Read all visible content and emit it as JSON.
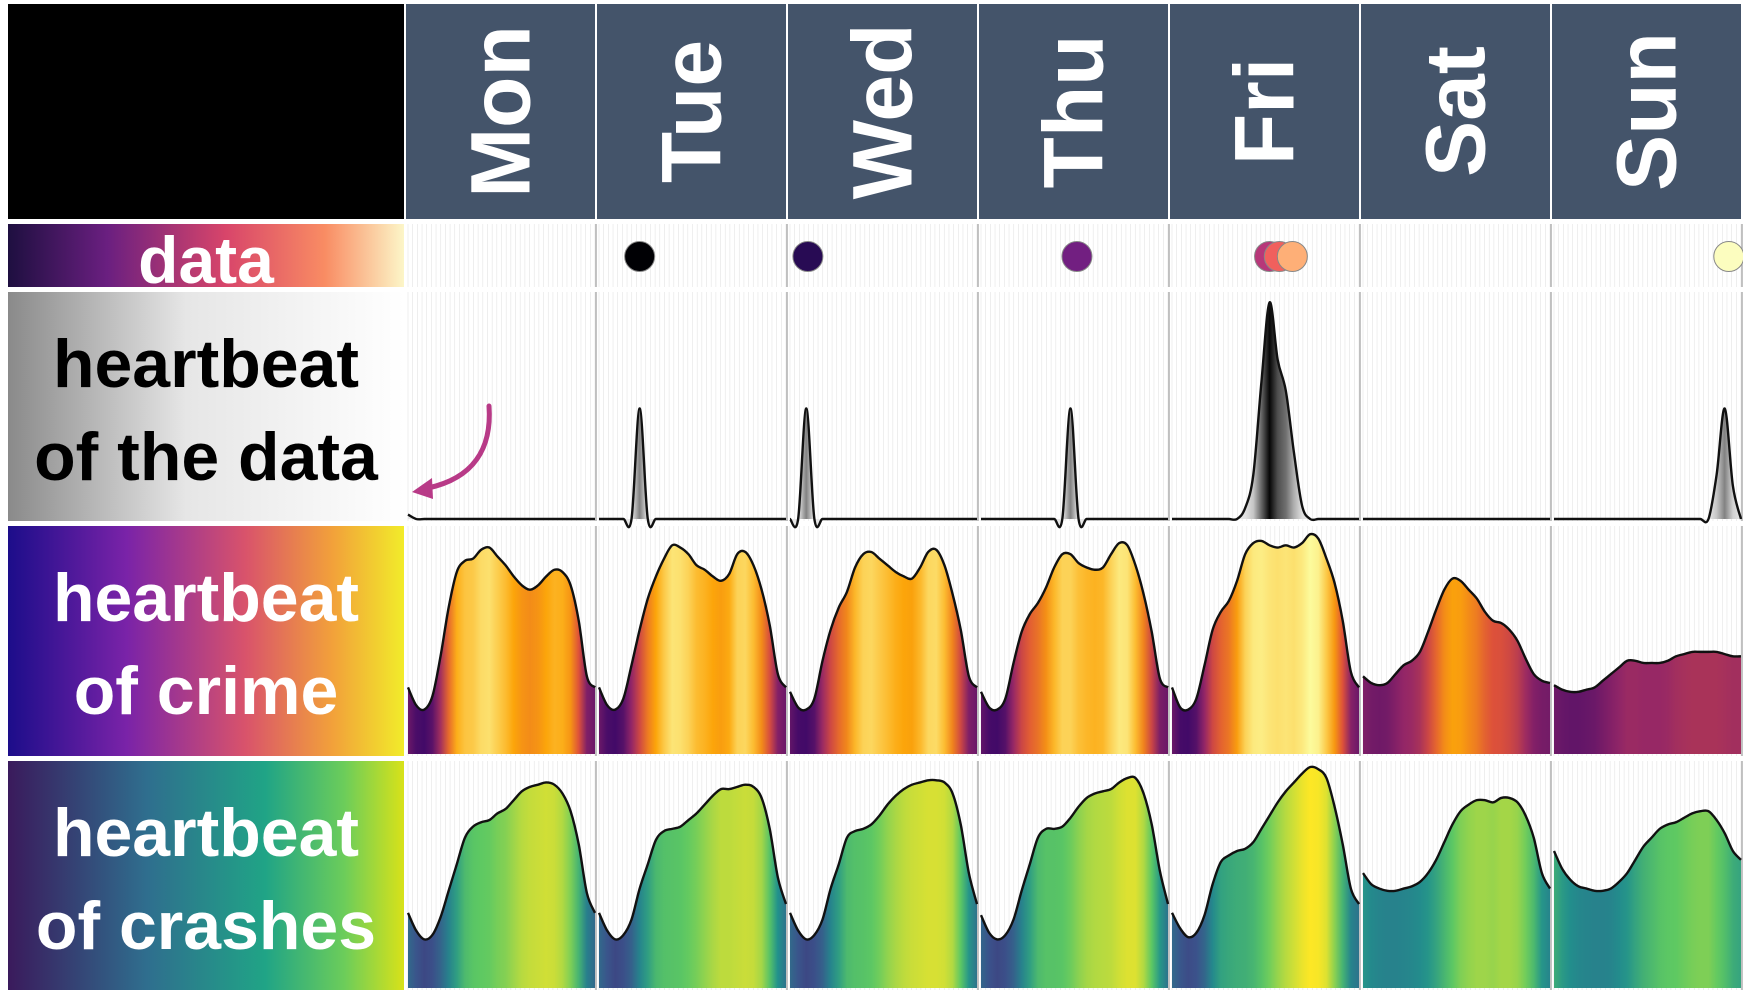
{
  "chart_data": {
    "type": "area",
    "days": [
      "Mon",
      "Tue",
      "Wed",
      "Thu",
      "Fri",
      "Sat",
      "Sun"
    ],
    "x_hours": [
      0,
      1,
      2,
      3,
      4,
      5,
      6,
      7,
      8,
      9,
      10,
      11,
      12,
      13,
      14,
      15,
      16,
      17,
      18,
      19,
      20,
      21,
      22,
      23
    ],
    "row_labels": {
      "data": [
        "data"
      ],
      "heartbeat_data": [
        "heartbeat",
        "of the data"
      ],
      "heartbeat_crime": [
        "heartbeat",
        "of crime"
      ],
      "heartbeat_crashes": [
        "heartbeat",
        "of crashes"
      ]
    },
    "data_points": [
      {
        "day": "Tue",
        "hour": 5.0,
        "color": "#000004"
      },
      {
        "day": "Wed",
        "hour": 2.2,
        "color": "#280b54"
      },
      {
        "day": "Thu",
        "hour": 11.8,
        "color": "#721f81"
      },
      {
        "day": "Fri",
        "hour": 12.0,
        "color": "#b73779"
      },
      {
        "day": "Fri",
        "hour": 13.2,
        "color": "#f1605d"
      },
      {
        "day": "Fri",
        "hour": 14.8,
        "color": "#feaf77"
      },
      {
        "day": "Sun",
        "hour": 21.5,
        "color": "#fcfdbf"
      }
    ],
    "series": [
      {
        "name": "heartbeat of the data",
        "values": [
          [
            0.02,
            0,
            0,
            0,
            0,
            0,
            0,
            0,
            0,
            0,
            0,
            0,
            0,
            0,
            0,
            0,
            0,
            0,
            0,
            0,
            0,
            0,
            0,
            0
          ],
          [
            0,
            0,
            0,
            0,
            0,
            0.5,
            0,
            0,
            0,
            0,
            0,
            0,
            0,
            0,
            0,
            0,
            0,
            0,
            0,
            0,
            0,
            0,
            0,
            0
          ],
          [
            0,
            0,
            0.5,
            0,
            0,
            0,
            0,
            0,
            0,
            0,
            0,
            0,
            0,
            0,
            0,
            0,
            0,
            0,
            0,
            0,
            0,
            0,
            0,
            0
          ],
          [
            0,
            0,
            0,
            0,
            0,
            0,
            0,
            0,
            0,
            0,
            0,
            0.5,
            0,
            0,
            0,
            0,
            0,
            0,
            0,
            0,
            0,
            0,
            0,
            0
          ],
          [
            0,
            0,
            0,
            0,
            0,
            0,
            0,
            0,
            0,
            0.05,
            0.2,
            0.62,
            0.98,
            0.72,
            0.58,
            0.3,
            0.06,
            0,
            0,
            0,
            0,
            0,
            0,
            0
          ],
          [
            0,
            0,
            0,
            0,
            0,
            0,
            0,
            0,
            0,
            0,
            0,
            0,
            0,
            0,
            0,
            0,
            0,
            0,
            0,
            0,
            0,
            0,
            0,
            0
          ],
          [
            0,
            0,
            0,
            0,
            0,
            0,
            0,
            0,
            0,
            0,
            0,
            0,
            0,
            0,
            0,
            0,
            0,
            0,
            0,
            0,
            0.2,
            0.5,
            0.15,
            0
          ]
        ]
      },
      {
        "name": "heartbeat of crime",
        "values": [
          [
            0.3,
            0.22,
            0.2,
            0.26,
            0.44,
            0.66,
            0.82,
            0.87,
            0.88,
            0.92,
            0.93,
            0.89,
            0.85,
            0.8,
            0.76,
            0.74,
            0.76,
            0.8,
            0.83,
            0.82,
            0.76,
            0.6,
            0.35,
            0.3
          ],
          [
            0.3,
            0.22,
            0.2,
            0.25,
            0.4,
            0.56,
            0.7,
            0.8,
            0.88,
            0.94,
            0.93,
            0.9,
            0.85,
            0.83,
            0.8,
            0.78,
            0.81,
            0.9,
            0.91,
            0.85,
            0.74,
            0.58,
            0.36,
            0.3
          ],
          [
            0.28,
            0.21,
            0.2,
            0.25,
            0.42,
            0.56,
            0.66,
            0.73,
            0.84,
            0.9,
            0.91,
            0.88,
            0.85,
            0.82,
            0.8,
            0.79,
            0.84,
            0.91,
            0.92,
            0.85,
            0.72,
            0.56,
            0.35,
            0.3
          ],
          [
            0.28,
            0.21,
            0.2,
            0.25,
            0.41,
            0.55,
            0.63,
            0.68,
            0.75,
            0.84,
            0.9,
            0.9,
            0.86,
            0.84,
            0.83,
            0.84,
            0.9,
            0.95,
            0.94,
            0.85,
            0.72,
            0.55,
            0.34,
            0.3
          ],
          [
            0.3,
            0.21,
            0.2,
            0.25,
            0.4,
            0.56,
            0.64,
            0.69,
            0.78,
            0.9,
            0.95,
            0.96,
            0.94,
            0.93,
            0.94,
            0.93,
            0.95,
            0.99,
            0.97,
            0.88,
            0.77,
            0.6,
            0.37,
            0.3
          ],
          [
            0.35,
            0.32,
            0.31,
            0.32,
            0.36,
            0.4,
            0.42,
            0.46,
            0.55,
            0.65,
            0.74,
            0.79,
            0.78,
            0.74,
            0.7,
            0.64,
            0.6,
            0.59,
            0.56,
            0.51,
            0.43,
            0.36,
            0.33,
            0.32
          ],
          [
            0.31,
            0.29,
            0.28,
            0.28,
            0.29,
            0.3,
            0.33,
            0.36,
            0.39,
            0.42,
            0.42,
            0.41,
            0.41,
            0.41,
            0.42,
            0.44,
            0.45,
            0.46,
            0.46,
            0.46,
            0.46,
            0.45,
            0.44,
            0.44
          ]
        ]
      },
      {
        "name": "heartbeat of crashes",
        "values": [
          [
            0.34,
            0.26,
            0.22,
            0.24,
            0.32,
            0.44,
            0.56,
            0.68,
            0.73,
            0.75,
            0.76,
            0.79,
            0.81,
            0.85,
            0.89,
            0.91,
            0.92,
            0.93,
            0.92,
            0.88,
            0.8,
            0.65,
            0.43,
            0.34
          ],
          [
            0.34,
            0.26,
            0.22,
            0.24,
            0.31,
            0.45,
            0.56,
            0.67,
            0.71,
            0.72,
            0.73,
            0.76,
            0.79,
            0.83,
            0.87,
            0.9,
            0.9,
            0.91,
            0.92,
            0.91,
            0.86,
            0.72,
            0.5,
            0.38
          ],
          [
            0.34,
            0.26,
            0.22,
            0.24,
            0.31,
            0.45,
            0.56,
            0.68,
            0.71,
            0.72,
            0.74,
            0.78,
            0.83,
            0.87,
            0.9,
            0.92,
            0.93,
            0.94,
            0.94,
            0.93,
            0.88,
            0.74,
            0.52,
            0.38
          ],
          [
            0.33,
            0.25,
            0.22,
            0.24,
            0.31,
            0.44,
            0.56,
            0.68,
            0.72,
            0.72,
            0.73,
            0.77,
            0.82,
            0.86,
            0.88,
            0.89,
            0.9,
            0.93,
            0.95,
            0.95,
            0.88,
            0.74,
            0.53,
            0.38
          ],
          [
            0.34,
            0.27,
            0.23,
            0.25,
            0.33,
            0.47,
            0.57,
            0.6,
            0.62,
            0.63,
            0.66,
            0.72,
            0.78,
            0.84,
            0.89,
            0.93,
            0.97,
            1.0,
            0.99,
            0.95,
            0.82,
            0.65,
            0.45,
            0.38
          ],
          [
            0.52,
            0.47,
            0.45,
            0.44,
            0.44,
            0.45,
            0.46,
            0.48,
            0.52,
            0.58,
            0.66,
            0.74,
            0.8,
            0.83,
            0.85,
            0.85,
            0.84,
            0.86,
            0.86,
            0.84,
            0.78,
            0.68,
            0.52,
            0.45
          ],
          [
            0.62,
            0.54,
            0.49,
            0.46,
            0.45,
            0.44,
            0.44,
            0.45,
            0.48,
            0.52,
            0.58,
            0.64,
            0.68,
            0.72,
            0.74,
            0.75,
            0.77,
            0.79,
            0.8,
            0.8,
            0.76,
            0.7,
            0.62,
            0.58
          ]
        ]
      }
    ],
    "colormaps": {
      "gray": [
        "#ffffff",
        "#d9d9d9",
        "#969696",
        "#525252",
        "#000000"
      ],
      "inferno": [
        "#000004",
        "#420a68",
        "#932667",
        "#dd513a",
        "#fca50a",
        "#fcffa4"
      ],
      "viridis": [
        "#440154",
        "#3b528b",
        "#21918c",
        "#5ec962",
        "#fde725"
      ],
      "magma": [
        "#000004",
        "#3b0f70",
        "#8c2981",
        "#de4968",
        "#fe9f6d",
        "#fcfdbf"
      ]
    },
    "header_color": "#44546a",
    "arrow_color": "#b83a87",
    "grid": true,
    "legend": "none"
  }
}
